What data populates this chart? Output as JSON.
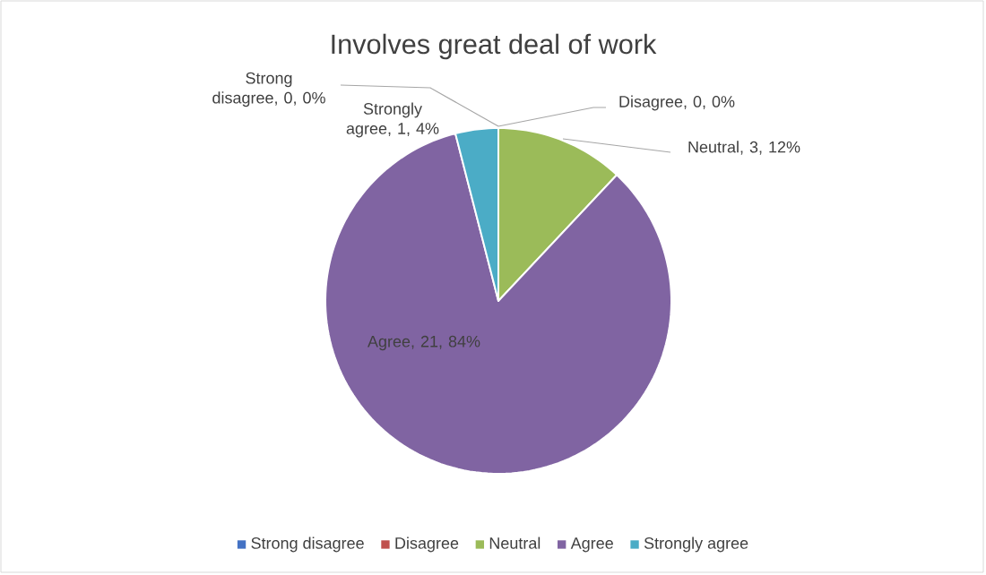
{
  "chart_data": {
    "type": "pie",
    "title": "Involves great deal of work",
    "categories": [
      "Strong disagree",
      "Disagree",
      "Neutral",
      "Agree",
      "Strongly agree"
    ],
    "values": [
      0,
      0,
      3,
      21,
      1
    ],
    "colors": [
      "#4472c4",
      "#c0504d",
      "#9bbb59",
      "#8064a2",
      "#4bacc6"
    ],
    "value_labels": [
      "Strong disagree, 0, 0%",
      "Disagree, 0, 0%",
      "Neutral, 3, 12%",
      "Agree, 21, 84%",
      "Strongly agree, 1, 4%"
    ],
    "legend": "bottom"
  }
}
